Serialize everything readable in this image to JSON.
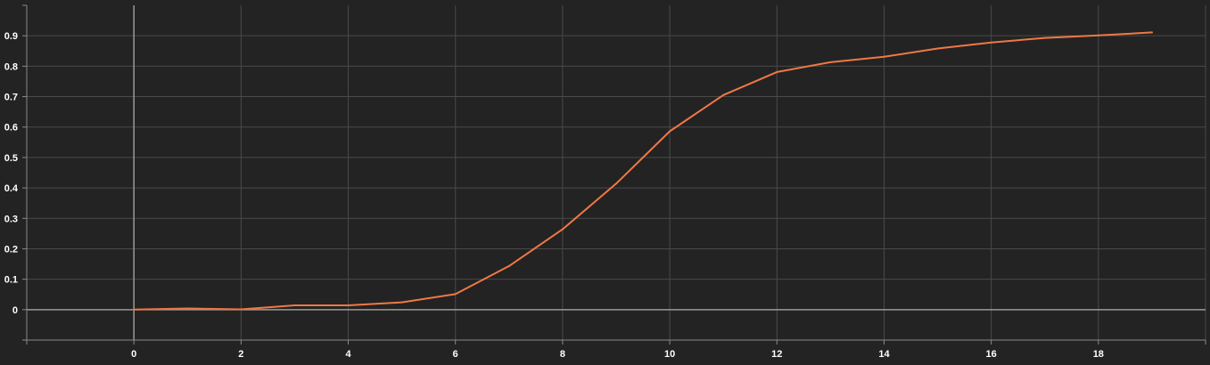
{
  "chart_data": {
    "type": "line",
    "title": "",
    "xlabel": "",
    "ylabel": "",
    "xlim": [
      -2,
      20
    ],
    "ylim": [
      -0.1,
      1.0
    ],
    "grid": true,
    "x_ticks": [
      0,
      2,
      4,
      6,
      8,
      10,
      12,
      14,
      16,
      18
    ],
    "x_tick_labels": [
      "0",
      "2",
      "4",
      "6",
      "8",
      "10",
      "12",
      "14",
      "16",
      "18"
    ],
    "y_ticks": [
      0,
      0.1,
      0.2,
      0.3,
      0.4,
      0.5,
      0.6,
      0.7,
      0.8,
      0.9
    ],
    "y_tick_labels": [
      "0",
      "0.1",
      "0.2",
      "0.3",
      "0.4",
      "0.5",
      "0.6",
      "0.7",
      "0.8",
      "0.9"
    ],
    "series": [
      {
        "color": "#f07845",
        "x": [
          0,
          1,
          2,
          3,
          4,
          5,
          6,
          7,
          8,
          9,
          10,
          11,
          12,
          13,
          14,
          15,
          16,
          17,
          18,
          19
        ],
        "y": [
          0.0,
          0.004,
          0.001,
          0.014,
          0.014,
          0.024,
          0.051,
          0.143,
          0.264,
          0.414,
          0.586,
          0.705,
          0.781,
          0.813,
          0.831,
          0.858,
          0.878,
          0.893,
          0.901,
          0.911
        ]
      }
    ]
  },
  "colors": {
    "background": "#232323",
    "grid": "#4a4a4a",
    "zero_axis": "#9a9a9a",
    "axis": "#8a8a8a"
  }
}
